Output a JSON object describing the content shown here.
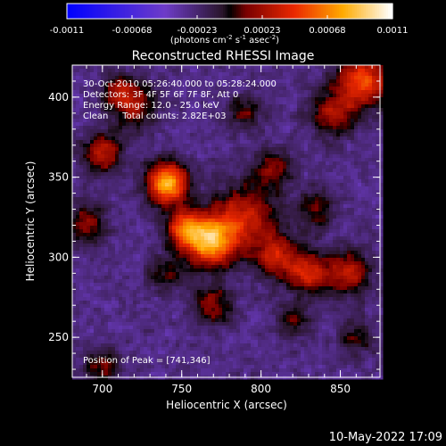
{
  "chart_data": {
    "type": "heatmap",
    "title": "Reconstructed RHESSI Image",
    "xlabel": "Heliocentric X (arcsec)",
    "ylabel": "Heliocentric Y (arcsec)",
    "xlim": [
      681,
      875
    ],
    "ylim": [
      225,
      420
    ],
    "x_ticks": [
      "700",
      "750",
      "800",
      "850"
    ],
    "y_ticks": [
      "250",
      "300",
      "350",
      "400"
    ],
    "colorbar": {
      "ticks": [
        "-0.0011",
        "-0.00068",
        "-0.00023",
        "0.00023",
        "0.00068",
        "0.0011"
      ],
      "range": [
        -0.0011,
        0.0011
      ],
      "units_prefix": "(photons cm",
      "units_exp1": "-2",
      "units_mid": " s",
      "units_exp2": "-1",
      "units_mid2": " asec",
      "units_exp3": "-2",
      "units_suffix": ")"
    },
    "annotations": [
      "30-Oct-2010 05:26:40.000 to 05:28:24.000",
      "Detectors: 3F 4F 5F 6F 7F 8F, Att 0",
      "Energy Range: 12.0 - 25.0 keV",
      "Clean     Total counts: 2.82E+03"
    ],
    "peak_label": "Position of Peak = [741,346]",
    "peak": [
      741,
      346
    ],
    "sources": [
      {
        "x": 741,
        "y": 346,
        "amp": 1.0,
        "s": 9
      },
      {
        "x": 768,
        "y": 310,
        "amp": 0.95,
        "s": 11
      },
      {
        "x": 752,
        "y": 318,
        "amp": 0.7,
        "s": 8
      },
      {
        "x": 790,
        "y": 325,
        "amp": 0.55,
        "s": 14
      },
      {
        "x": 810,
        "y": 300,
        "amp": 0.5,
        "s": 10
      },
      {
        "x": 830,
        "y": 290,
        "amp": 0.55,
        "s": 9
      },
      {
        "x": 855,
        "y": 290,
        "amp": 0.5,
        "s": 10
      },
      {
        "x": 865,
        "y": 410,
        "amp": 0.7,
        "s": 12
      },
      {
        "x": 845,
        "y": 390,
        "amp": 0.45,
        "s": 10
      },
      {
        "x": 700,
        "y": 365,
        "amp": 0.5,
        "s": 9
      },
      {
        "x": 690,
        "y": 320,
        "amp": 0.4,
        "s": 9
      },
      {
        "x": 720,
        "y": 395,
        "amp": 0.45,
        "s": 10
      },
      {
        "x": 770,
        "y": 270,
        "amp": 0.4,
        "s": 9
      },
      {
        "x": 700,
        "y": 232,
        "amp": 0.35,
        "s": 8
      },
      {
        "x": 808,
        "y": 355,
        "amp": 0.35,
        "s": 9
      },
      {
        "x": 835,
        "y": 330,
        "amp": 0.3,
        "s": 9
      },
      {
        "x": 790,
        "y": 390,
        "amp": 0.3,
        "s": 8
      },
      {
        "x": 860,
        "y": 250,
        "amp": 0.3,
        "s": 8
      },
      {
        "x": 820,
        "y": 260,
        "amp": 0.3,
        "s": 8
      },
      {
        "x": 740,
        "y": 290,
        "amp": 0.3,
        "s": 8
      },
      {
        "x": 710,
        "y": 405,
        "amp": 0.35,
        "s": 7
      }
    ],
    "background": -0.25,
    "footer_date": "10-May-2022 17:09"
  }
}
